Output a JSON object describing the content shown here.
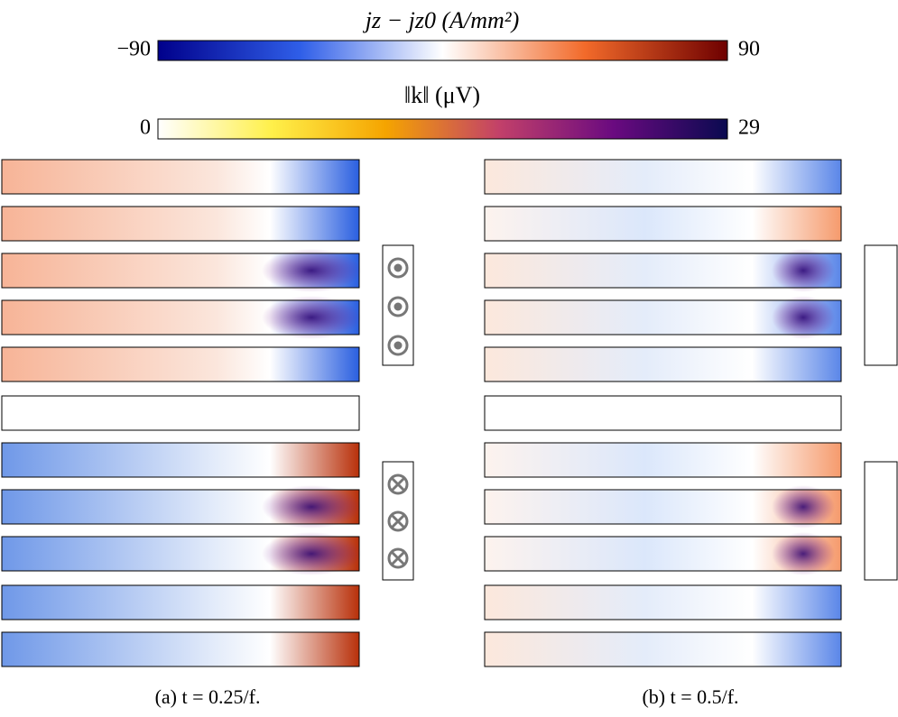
{
  "colorbars": [
    {
      "label": "jz − jz0 (A/mm²)",
      "ticks": [
        {
          "value": -90,
          "label": "−90"
        },
        90
      ]
    },
    {
      "label": "‖k‖ (μV)",
      "ticks": [
        0,
        29
      ]
    }
  ],
  "panels": [
    {
      "caption": "(a) t = 0.25/f."
    },
    {
      "caption": "(b) t = 0.5/f."
    }
  ]
}
